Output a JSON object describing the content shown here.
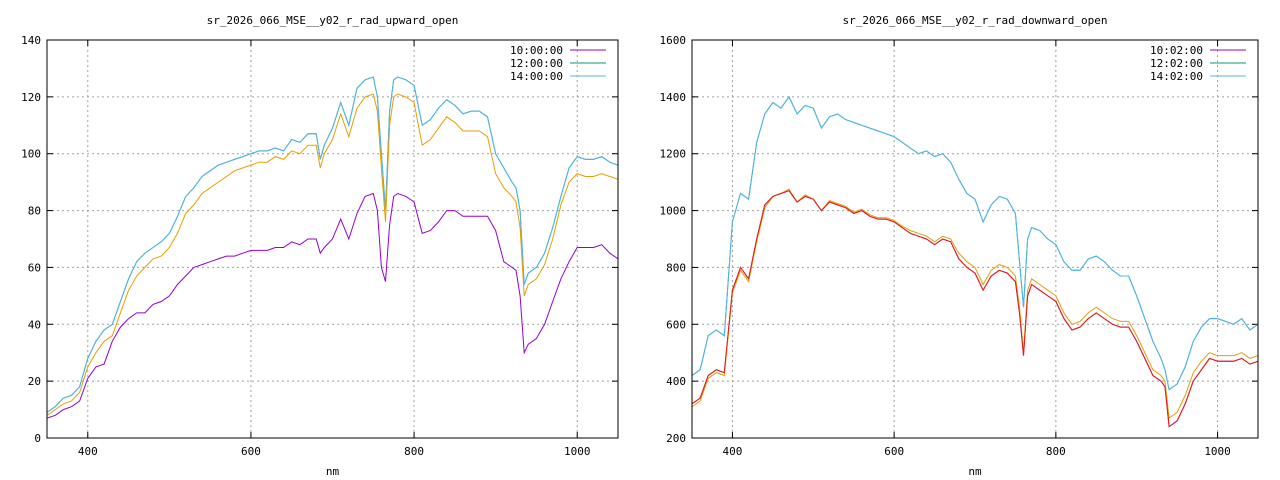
{
  "chart_data": [
    {
      "type": "line",
      "title": "sr_2026_066_MSE__y02_r_rad_upward_open",
      "xlabel": "nm",
      "ylabel": "",
      "xlim": [
        350,
        1050
      ],
      "ylim": [
        0,
        140
      ],
      "xticks": [
        400,
        600,
        800,
        1000
      ],
      "yticks": [
        0,
        20,
        40,
        60,
        80,
        100,
        120,
        140
      ],
      "grid": true,
      "legend": "top-right",
      "x": [
        350,
        360,
        370,
        380,
        390,
        400,
        410,
        420,
        430,
        440,
        450,
        460,
        470,
        480,
        490,
        500,
        510,
        520,
        530,
        540,
        550,
        560,
        570,
        580,
        590,
        600,
        610,
        620,
        630,
        640,
        650,
        660,
        670,
        680,
        685,
        690,
        700,
        710,
        720,
        730,
        740,
        750,
        755,
        760,
        765,
        770,
        775,
        780,
        790,
        800,
        810,
        820,
        830,
        840,
        850,
        860,
        870,
        880,
        890,
        900,
        910,
        920,
        925,
        930,
        935,
        940,
        950,
        960,
        970,
        980,
        990,
        1000,
        1010,
        1020,
        1030,
        1040,
        1050
      ],
      "series": [
        {
          "name": "10:00:00",
          "color": "#9400d3",
          "values": [
            7,
            8,
            10,
            11,
            13,
            21,
            25,
            26,
            34,
            39,
            42,
            44,
            44,
            47,
            48,
            50,
            54,
            57,
            60,
            61,
            62,
            63,
            64,
            64,
            65,
            66,
            66,
            66,
            67,
            67,
            69,
            68,
            70,
            70,
            65,
            67,
            70,
            77,
            70,
            79,
            85,
            86,
            80,
            60,
            55,
            75,
            85,
            86,
            85,
            83,
            72,
            73,
            76,
            80,
            80,
            78,
            78,
            78,
            78,
            73,
            62,
            60,
            59,
            50,
            30,
            33,
            35,
            40,
            48,
            56,
            62,
            67,
            67,
            67,
            68,
            65,
            63
          ]
        },
        {
          "name": "12:00:00",
          "color": "#009e73",
          "values": [
            9,
            11,
            14,
            15,
            18,
            28,
            34,
            38,
            40,
            48,
            56,
            62,
            65,
            67,
            69,
            72,
            78,
            85,
            88,
            92,
            94,
            96,
            97,
            98,
            99,
            100,
            101,
            101,
            102,
            101,
            105,
            104,
            107,
            107,
            98,
            103,
            109,
            118,
            110,
            123,
            126,
            127,
            120,
            100,
            80,
            115,
            126,
            127,
            126,
            124,
            110,
            112,
            116,
            119,
            117,
            114,
            115,
            115,
            113,
            100,
            95,
            90,
            88,
            80,
            54,
            58,
            60,
            65,
            74,
            85,
            95,
            99,
            98,
            98,
            99,
            97,
            96
          ]
        },
        {
          "name": "14:00:00",
          "color": "#56b4e9",
          "values": [
            9,
            11,
            14,
            15,
            18,
            28,
            34,
            38,
            40,
            48,
            56,
            62,
            65,
            67,
            69,
            72,
            78,
            85,
            88,
            92,
            94,
            96,
            97,
            98,
            99,
            100,
            101,
            101,
            102,
            101,
            105,
            104,
            107,
            107,
            98,
            103,
            109,
            118,
            110,
            123,
            126,
            127,
            120,
            100,
            80,
            115,
            126,
            127,
            126,
            124,
            110,
            112,
            116,
            119,
            117,
            114,
            115,
            115,
            113,
            100,
            95,
            90,
            88,
            80,
            54,
            58,
            60,
            65,
            74,
            85,
            95,
            99,
            98,
            98,
            99,
            97,
            96
          ]
        },
        {
          "name": "",
          "color": "#e69f00",
          "values": [
            8,
            10,
            12,
            13,
            16,
            25,
            30,
            34,
            36,
            44,
            52,
            57,
            60,
            63,
            64,
            67,
            72,
            79,
            82,
            86,
            88,
            90,
            92,
            94,
            95,
            96,
            97,
            97,
            99,
            98,
            101,
            100,
            103,
            103,
            95,
            100,
            105,
            114,
            106,
            116,
            120,
            121,
            115,
            95,
            76,
            110,
            120,
            121,
            120,
            118,
            103,
            105,
            109,
            113,
            111,
            108,
            108,
            108,
            106,
            93,
            88,
            85,
            83,
            74,
            50,
            54,
            56,
            61,
            70,
            82,
            90,
            93,
            92,
            92,
            93,
            92,
            91
          ]
        }
      ]
    },
    {
      "type": "line",
      "title": "sr_2026_066_MSE__y02_r_rad_downward_open",
      "xlabel": "nm",
      "ylabel": "",
      "xlim": [
        350,
        1050
      ],
      "ylim": [
        200,
        1600
      ],
      "xticks": [
        400,
        600,
        800,
        1000
      ],
      "yticks": [
        200,
        400,
        600,
        800,
        1000,
        1200,
        1400,
        1600
      ],
      "grid": true,
      "legend": "top-right",
      "x": [
        350,
        360,
        370,
        380,
        390,
        400,
        410,
        420,
        430,
        440,
        450,
        460,
        470,
        480,
        490,
        500,
        510,
        520,
        530,
        540,
        550,
        560,
        570,
        580,
        590,
        600,
        610,
        620,
        630,
        640,
        650,
        660,
        670,
        680,
        690,
        700,
        710,
        720,
        730,
        740,
        750,
        755,
        760,
        765,
        770,
        780,
        790,
        800,
        810,
        820,
        830,
        840,
        850,
        860,
        870,
        880,
        890,
        900,
        910,
        920,
        930,
        935,
        940,
        950,
        960,
        970,
        980,
        990,
        1000,
        1010,
        1020,
        1030,
        1040,
        1050
      ],
      "series": [
        {
          "name": "10:02:00",
          "color": "#9400d3",
          "values": [
            320,
            340,
            420,
            440,
            430,
            720,
            800,
            760,
            900,
            1020,
            1050,
            1060,
            1070,
            1030,
            1050,
            1040,
            1000,
            1030,
            1020,
            1010,
            990,
            1000,
            980,
            970,
            970,
            960,
            940,
            920,
            910,
            900,
            880,
            900,
            890,
            830,
            800,
            780,
            720,
            770,
            790,
            780,
            750,
            640,
            490,
            700,
            740,
            720,
            700,
            680,
            620,
            580,
            590,
            620,
            640,
            620,
            600,
            590,
            590,
            540,
            480,
            420,
            400,
            380,
            240,
            260,
            320,
            400,
            440,
            480,
            470,
            470,
            470,
            480,
            460,
            470
          ]
        },
        {
          "name": "12:02:00",
          "color": "#009e73",
          "values": [
            420,
            440,
            560,
            580,
            560,
            960,
            1060,
            1040,
            1240,
            1340,
            1380,
            1360,
            1400,
            1340,
            1370,
            1360,
            1290,
            1330,
            1340,
            1320,
            1310,
            1300,
            1290,
            1280,
            1270,
            1260,
            1240,
            1220,
            1200,
            1210,
            1190,
            1200,
            1170,
            1110,
            1060,
            1040,
            960,
            1020,
            1050,
            1040,
            990,
            820,
            660,
            900,
            940,
            930,
            900,
            880,
            820,
            790,
            790,
            830,
            840,
            820,
            790,
            770,
            770,
            700,
            620,
            540,
            480,
            440,
            370,
            390,
            450,
            540,
            590,
            620,
            620,
            610,
            600,
            620,
            580,
            600
          ]
        },
        {
          "name": "14:02:00",
          "color": "#56b4e9",
          "values": [
            420,
            440,
            560,
            580,
            560,
            960,
            1060,
            1040,
            1240,
            1340,
            1380,
            1360,
            1400,
            1340,
            1370,
            1360,
            1290,
            1330,
            1340,
            1320,
            1310,
            1300,
            1290,
            1280,
            1270,
            1260,
            1240,
            1220,
            1200,
            1210,
            1190,
            1200,
            1170,
            1110,
            1060,
            1040,
            960,
            1020,
            1050,
            1040,
            990,
            820,
            660,
            900,
            940,
            930,
            900,
            880,
            820,
            790,
            790,
            830,
            840,
            820,
            790,
            770,
            770,
            700,
            620,
            540,
            480,
            440,
            370,
            390,
            450,
            540,
            590,
            620,
            620,
            610,
            600,
            620,
            580,
            600
          ]
        },
        {
          "name": "",
          "color": "#e69f00",
          "values": [
            310,
            330,
            410,
            430,
            420,
            710,
            790,
            750,
            890,
            1010,
            1050,
            1060,
            1075,
            1030,
            1055,
            1040,
            1000,
            1035,
            1025,
            1015,
            995,
            1005,
            985,
            975,
            975,
            965,
            945,
            930,
            920,
            910,
            890,
            910,
            900,
            850,
            820,
            800,
            740,
            790,
            810,
            800,
            770,
            660,
            500,
            720,
            760,
            740,
            720,
            700,
            640,
            600,
            610,
            640,
            660,
            640,
            620,
            610,
            610,
            560,
            500,
            440,
            420,
            400,
            270,
            290,
            350,
            430,
            470,
            500,
            490,
            490,
            490,
            500,
            480,
            490
          ]
        },
        {
          "name": "",
          "color": "#e51e10",
          "values": [
            320,
            340,
            420,
            440,
            430,
            720,
            800,
            760,
            900,
            1020,
            1050,
            1060,
            1070,
            1030,
            1050,
            1040,
            1000,
            1030,
            1020,
            1010,
            990,
            1000,
            980,
            970,
            970,
            960,
            940,
            920,
            910,
            900,
            880,
            900,
            890,
            830,
            800,
            780,
            720,
            770,
            790,
            780,
            750,
            640,
            490,
            700,
            740,
            720,
            700,
            680,
            620,
            580,
            590,
            620,
            640,
            620,
            600,
            590,
            590,
            540,
            480,
            420,
            400,
            380,
            240,
            260,
            320,
            400,
            440,
            480,
            470,
            470,
            470,
            480,
            460,
            470
          ]
        }
      ]
    }
  ]
}
